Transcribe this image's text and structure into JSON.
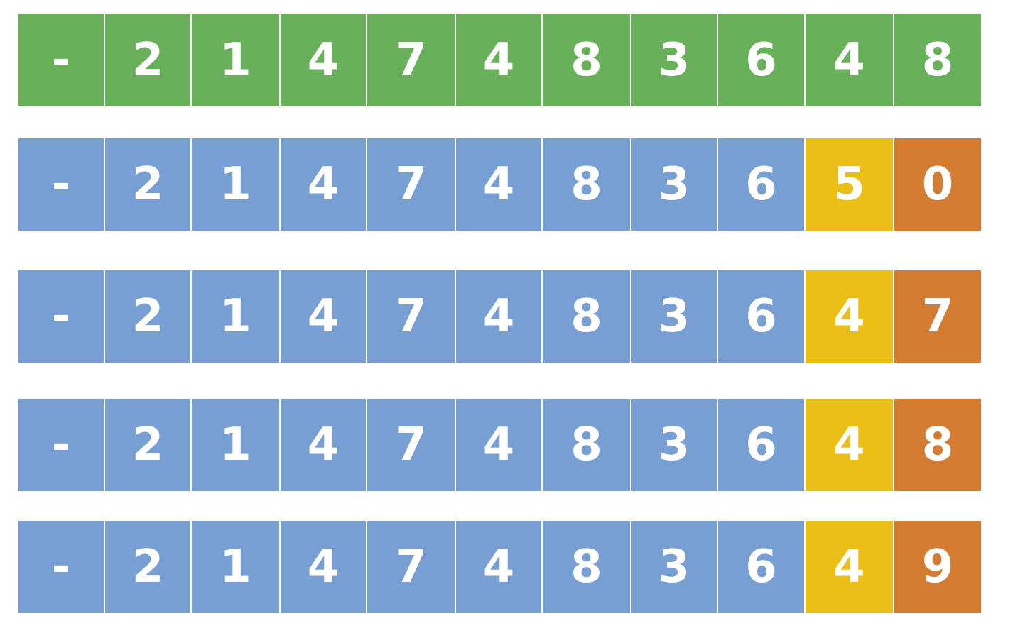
{
  "colors": {
    "green": "#68b15a",
    "blue": "#789fd3",
    "yellow": "#ebbe18",
    "orange": "#d57c33"
  },
  "rows": [
    {
      "cells": [
        {
          "text": "-",
          "color": "green"
        },
        {
          "text": "2",
          "color": "green"
        },
        {
          "text": "1",
          "color": "green"
        },
        {
          "text": "4",
          "color": "green"
        },
        {
          "text": "7",
          "color": "green"
        },
        {
          "text": "4",
          "color": "green"
        },
        {
          "text": "8",
          "color": "green"
        },
        {
          "text": "3",
          "color": "green"
        },
        {
          "text": "6",
          "color": "green"
        },
        {
          "text": "4",
          "color": "green"
        },
        {
          "text": "8",
          "color": "green"
        }
      ]
    },
    {
      "cells": [
        {
          "text": "-",
          "color": "blue"
        },
        {
          "text": "2",
          "color": "blue"
        },
        {
          "text": "1",
          "color": "blue"
        },
        {
          "text": "4",
          "color": "blue"
        },
        {
          "text": "7",
          "color": "blue"
        },
        {
          "text": "4",
          "color": "blue"
        },
        {
          "text": "8",
          "color": "blue"
        },
        {
          "text": "3",
          "color": "blue"
        },
        {
          "text": "6",
          "color": "blue"
        },
        {
          "text": "5",
          "color": "yellow"
        },
        {
          "text": "0",
          "color": "orange"
        }
      ]
    },
    {
      "cells": [
        {
          "text": "-",
          "color": "blue"
        },
        {
          "text": "2",
          "color": "blue"
        },
        {
          "text": "1",
          "color": "blue"
        },
        {
          "text": "4",
          "color": "blue"
        },
        {
          "text": "7",
          "color": "blue"
        },
        {
          "text": "4",
          "color": "blue"
        },
        {
          "text": "8",
          "color": "blue"
        },
        {
          "text": "3",
          "color": "blue"
        },
        {
          "text": "6",
          "color": "blue"
        },
        {
          "text": "4",
          "color": "yellow"
        },
        {
          "text": "7",
          "color": "orange"
        }
      ]
    },
    {
      "cells": [
        {
          "text": "-",
          "color": "blue"
        },
        {
          "text": "2",
          "color": "blue"
        },
        {
          "text": "1",
          "color": "blue"
        },
        {
          "text": "4",
          "color": "blue"
        },
        {
          "text": "7",
          "color": "blue"
        },
        {
          "text": "4",
          "color": "blue"
        },
        {
          "text": "8",
          "color": "blue"
        },
        {
          "text": "3",
          "color": "blue"
        },
        {
          "text": "6",
          "color": "blue"
        },
        {
          "text": "4",
          "color": "yellow"
        },
        {
          "text": "8",
          "color": "orange"
        }
      ]
    },
    {
      "cells": [
        {
          "text": "-",
          "color": "blue"
        },
        {
          "text": "2",
          "color": "blue"
        },
        {
          "text": "1",
          "color": "blue"
        },
        {
          "text": "4",
          "color": "blue"
        },
        {
          "text": "7",
          "color": "blue"
        },
        {
          "text": "4",
          "color": "blue"
        },
        {
          "text": "8",
          "color": "blue"
        },
        {
          "text": "3",
          "color": "blue"
        },
        {
          "text": "6",
          "color": "blue"
        },
        {
          "text": "4",
          "color": "yellow"
        },
        {
          "text": "9",
          "color": "orange"
        }
      ]
    }
  ]
}
